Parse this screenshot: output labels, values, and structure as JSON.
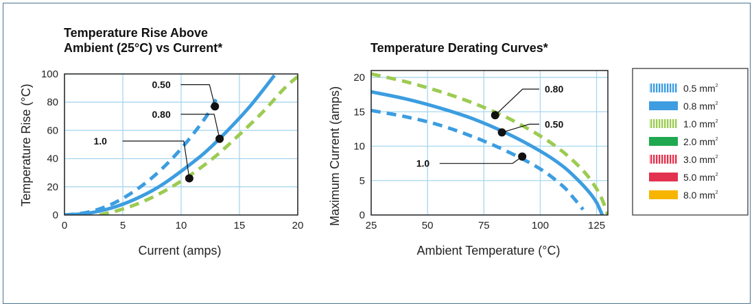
{
  "chart_data": [
    {
      "type": "line",
      "title": [
        "Temperature Rise Above",
        "Ambient (25°C) vs Current*"
      ],
      "xlabel": "Current (amps)",
      "ylabel": "Temperature Rise (°C)",
      "xlim": [
        0,
        20
      ],
      "ylim": [
        0,
        100
      ],
      "xticks": [
        "0",
        "5",
        "10",
        "15",
        "20"
      ],
      "yticks": [
        "0",
        "20",
        "40",
        "60",
        "80",
        "100"
      ],
      "grid": true,
      "series": [
        {
          "ref": "0.5 mm²",
          "color": "#3d9de0",
          "dash": "dashed",
          "x": [
            0,
            2,
            4,
            6,
            8,
            10,
            12,
            13
          ],
          "y": [
            0,
            2,
            7.5,
            17,
            30,
            47,
            68,
            82
          ]
        },
        {
          "ref": "0.8 mm²",
          "color": "#3d9de0",
          "dash": "solid",
          "x": [
            0,
            2,
            4,
            6,
            8,
            10,
            12,
            14,
            16,
            18
          ],
          "y": [
            0,
            1.2,
            4.9,
            11,
            19.5,
            31,
            44,
            60,
            78,
            99
          ]
        },
        {
          "ref": "1.0 mm²",
          "color": "#9ccb52",
          "dash": "dashed",
          "x": [
            3,
            5,
            7,
            9,
            11,
            13,
            15,
            17,
            19,
            20.3
          ],
          "y": [
            0,
            4.2,
            10.5,
            19,
            29.5,
            42,
            57,
            73,
            91,
            100
          ]
        }
      ],
      "annotations": [
        {
          "text": "0.50",
          "point": [
            12.9,
            77
          ],
          "label_pos": [
            7.5,
            90
          ]
        },
        {
          "text": "0.80",
          "point": [
            13.3,
            54
          ],
          "label_pos": [
            7.5,
            69
          ]
        },
        {
          "text": "1.0",
          "point": [
            10.7,
            26
          ],
          "label_pos": [
            2.5,
            50
          ]
        }
      ]
    },
    {
      "type": "line",
      "title": "Temperature Derating Curves*",
      "xlabel": "Ambient Temperature (°C)",
      "ylabel": "Maximum Current (amps)",
      "xlim": [
        25,
        130
      ],
      "ylim": [
        0,
        21
      ],
      "xticks": [
        "25",
        "50",
        "75",
        "100",
        "125"
      ],
      "yticks": [
        "0",
        "5",
        "10",
        "15",
        "20"
      ],
      "grid": true,
      "series": [
        {
          "ref": "1.0 mm²",
          "color": "#9ccb52",
          "dash": "dashed",
          "x": [
            25,
            40,
            55,
            70,
            85,
            100,
            110,
            118,
            123,
            127,
            130
          ],
          "y": [
            20.5,
            19.4,
            18,
            16.3,
            14.2,
            11.5,
            9.2,
            6.8,
            4.8,
            2.6,
            0
          ]
        },
        {
          "ref": "0.8 mm²",
          "color": "#3d9de0",
          "dash": "solid",
          "x": [
            25,
            40,
            55,
            70,
            85,
            100,
            110,
            117,
            122,
            125,
            127.5
          ],
          "y": [
            17.9,
            16.9,
            15.6,
            14,
            11.9,
            9.3,
            7.1,
            5,
            3.2,
            1.8,
            0
          ]
        },
        {
          "ref": "0.5 mm²",
          "color": "#3d9de0",
          "dash": "dashed",
          "x": [
            25,
            40,
            55,
            70,
            85,
            100,
            110,
            115,
            119
          ],
          "y": [
            15.2,
            14.3,
            13.1,
            11.4,
            9.3,
            6.7,
            4.2,
            2.4,
            0.8
          ]
        }
      ],
      "annotations": [
        {
          "text": "0.80",
          "point": [
            80,
            14.5
          ],
          "label_pos": [
            102,
            17.8
          ]
        },
        {
          "text": "0.50",
          "point": [
            83,
            12
          ],
          "label_pos": [
            102,
            12.7
          ]
        },
        {
          "text": "1.0",
          "point": [
            92,
            8.5
          ],
          "label_pos": [
            45,
            7
          ]
        }
      ]
    }
  ],
  "legend": [
    {
      "text": "0.5 mm",
      "sup": "2",
      "color": "#3d9de0",
      "style": "striped"
    },
    {
      "text": "0.8 mm",
      "sup": "2",
      "color": "#3d9de0",
      "style": "solid"
    },
    {
      "text": "1.0 mm",
      "sup": "2",
      "color": "#9ccb52",
      "style": "striped"
    },
    {
      "text": "2.0 mm",
      "sup": "2",
      "color": "#1fa84f",
      "style": "solid"
    },
    {
      "text": "3.0 mm",
      "sup": "2",
      "color": "#e2324f",
      "style": "striped"
    },
    {
      "text": "5.0 mm",
      "sup": "2",
      "color": "#e2324f",
      "style": "solid"
    },
    {
      "text": "8.0 mm",
      "sup": "2",
      "color": "#f7b500",
      "style": "solid"
    }
  ]
}
